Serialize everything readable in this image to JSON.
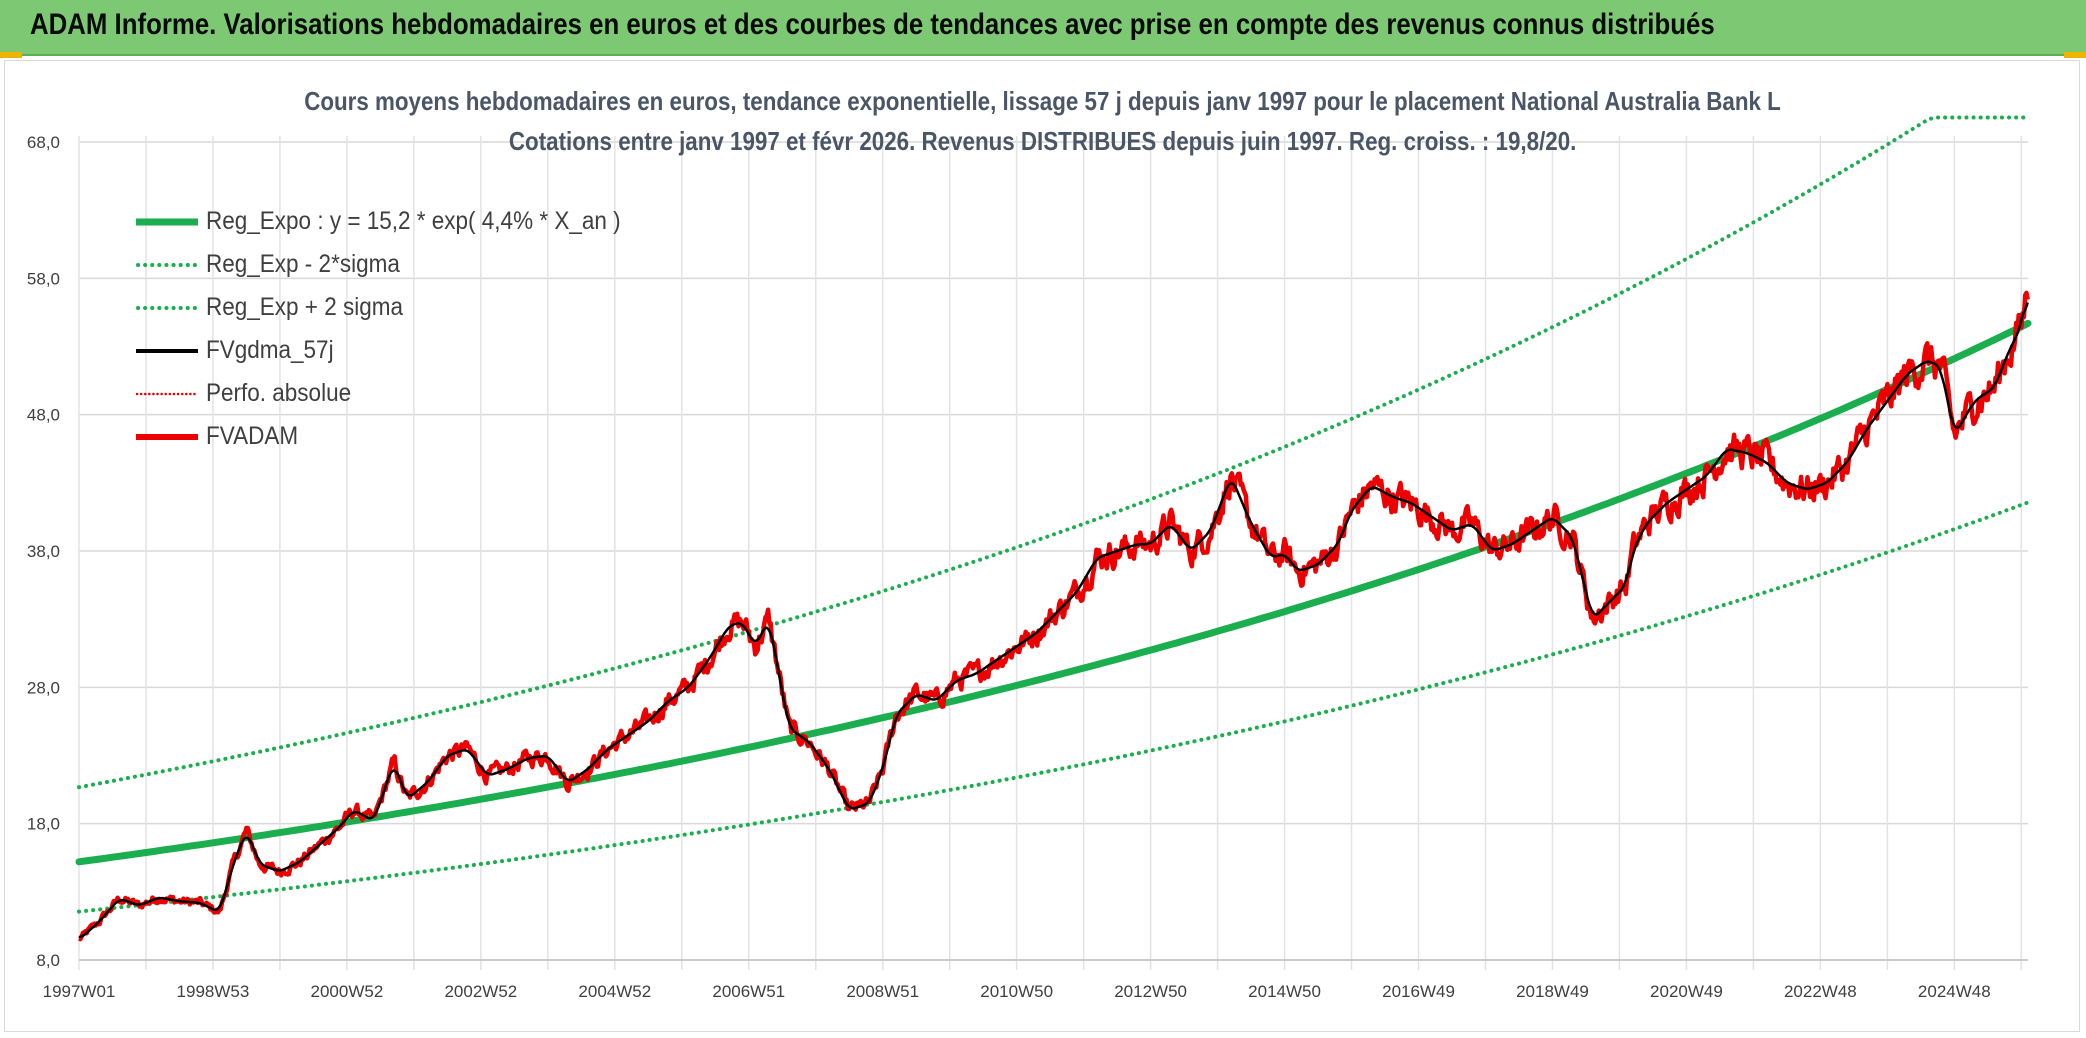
{
  "header": {
    "title": "ADAM Informe. Valorisations hebdomadaires en euros et des courbes de tendances avec prise en compte des revenus connus distribués"
  },
  "colors": {
    "header_bg": "#7dc873",
    "trend_green": "#1aae4e",
    "series_red": "#ee0000",
    "smooth_black": "#000000",
    "grid": "#d9d9d9",
    "axis_text": "#3f3f3f",
    "title_text": "#4a5666"
  },
  "chart_data": {
    "type": "line",
    "title_line1": "Cours moyens hebdomadaires en euros, tendance exponentielle, lissage 57 j depuis janv 1997 pour le placement National Australia Bank L",
    "title_line2": "Cotations entre janv 1997 et févr 2026. Revenus DISTRIBUES depuis juin 1997. Reg. croiss. : 19,8/20.",
    "xlabel": "",
    "ylabel": "",
    "ylim": [
      8,
      68
    ],
    "yticks": [
      "8,0",
      "18,0",
      "28,0",
      "38,0",
      "48,0",
      "58,0",
      "68,0"
    ],
    "ytick_values": [
      8,
      18,
      28,
      38,
      48,
      58,
      68
    ],
    "xlim": [
      1997.0,
      2026.1
    ],
    "xticks": [
      "1997W01",
      "1998W53",
      "2000W52",
      "2002W52",
      "2004W52",
      "2006W51",
      "2008W51",
      "2010W50",
      "2012W50",
      "2014W50",
      "2016W49",
      "2018W49",
      "2020W49",
      "2022W48",
      "2024W48"
    ],
    "xtick_years": [
      1997.0,
      1999.0,
      2001.0,
      2003.0,
      2005.0,
      2007.0,
      2009.0,
      2011.0,
      2013.0,
      2015.0,
      2017.0,
      2019.0,
      2021.0,
      2023.0,
      2025.0
    ],
    "legend_position": "top-left",
    "legend": [
      {
        "label": "Reg_Expo : y = 15,2 * exp( 4,4% *  X_an )",
        "style": "solid-thick",
        "color": "#1aae4e"
      },
      {
        "label": "Reg_Exp - 2*sigma",
        "style": "dotted",
        "color": "#1aae4e"
      },
      {
        "label": "Reg_Exp + 2 sigma",
        "style": "dotted",
        "color": "#1aae4e"
      },
      {
        "label": "FVgdma_57j",
        "style": "solid",
        "color": "#000000"
      },
      {
        "label": "Perfo. absolue",
        "style": "dotted-thin",
        "color": "#ee0000"
      },
      {
        "label": "FVADAM",
        "style": "solid-thick",
        "color": "#ee0000"
      }
    ],
    "regression": {
      "a": 15.2,
      "b": 0.044,
      "lower_factor": 0.76,
      "upper_factor": 1.36,
      "cap": 69.8
    },
    "series_fvadam": {
      "name": "FVADAM",
      "x": [
        1997.0,
        1997.3,
        1997.6,
        1997.9,
        1998.2,
        1998.5,
        1998.8,
        1999.1,
        1999.3,
        1999.5,
        1999.7,
        2000.0,
        2000.3,
        2000.6,
        2000.9,
        2001.1,
        2001.4,
        2001.7,
        2001.9,
        2002.2,
        2002.5,
        2002.8,
        2003.1,
        2003.4,
        2003.7,
        2004.0,
        2004.3,
        2004.6,
        2004.9,
        2005.2,
        2005.5,
        2005.8,
        2006.1,
        2006.4,
        2006.7,
        2006.9,
        2007.1,
        2007.3,
        2007.6,
        2007.9,
        2008.2,
        2008.5,
        2008.8,
        2009.0,
        2009.2,
        2009.5,
        2009.8,
        2010.1,
        2010.4,
        2010.7,
        2011.0,
        2011.3,
        2011.6,
        2011.9,
        2012.2,
        2012.5,
        2012.8,
        2013.0,
        2013.3,
        2013.6,
        2013.9,
        2014.2,
        2014.5,
        2014.8,
        2015.0,
        2015.2,
        2015.5,
        2015.8,
        2016.0,
        2016.3,
        2016.6,
        2016.9,
        2017.2,
        2017.5,
        2017.8,
        2018.1,
        2018.4,
        2018.7,
        2019.0,
        2019.3,
        2019.6,
        2019.9,
        2020.1,
        2020.2,
        2020.4,
        2020.7,
        2021.0,
        2021.3,
        2021.6,
        2021.9,
        2022.2,
        2022.5,
        2022.8,
        2023.1,
        2023.4,
        2023.7,
        2024.0,
        2024.3,
        2024.6,
        2024.8,
        2025.0,
        2025.3,
        2025.6,
        2025.8,
        2026.0,
        2026.1
      ],
      "y": [
        9.5,
        10.8,
        12.5,
        12.0,
        12.6,
        12.3,
        12.2,
        11.5,
        15.0,
        17.5,
        15.0,
        14.5,
        15.2,
        16.5,
        17.8,
        19.0,
        18.2,
        22.5,
        19.8,
        21.0,
        23.0,
        23.5,
        21.5,
        22.0,
        22.8,
        23.0,
        21.0,
        22.0,
        23.5,
        24.5,
        25.5,
        27.0,
        28.0,
        30.0,
        32.5,
        32.8,
        31.0,
        33.0,
        25.0,
        24.0,
        22.0,
        19.0,
        19.5,
        22.0,
        26.0,
        27.5,
        27.0,
        28.5,
        29.0,
        30.0,
        31.0,
        32.0,
        33.5,
        35.0,
        37.5,
        38.0,
        38.5,
        38.5,
        40.0,
        38.0,
        39.5,
        43.5,
        40.0,
        37.5,
        37.8,
        36.5,
        37.0,
        38.5,
        41.0,
        42.8,
        42.0,
        41.5,
        40.5,
        39.5,
        40.0,
        38.0,
        38.5,
        39.5,
        40.5,
        39.0,
        33.0,
        34.5,
        35.5,
        38.0,
        40.0,
        41.5,
        42.5,
        43.5,
        45.5,
        45.2,
        44.5,
        43.0,
        42.5,
        43.0,
        44.5,
        47.0,
        49.0,
        51.0,
        52.0,
        51.5,
        46.5,
        49.0,
        50.0,
        52.5,
        54.5,
        57.5
      ]
    }
  }
}
